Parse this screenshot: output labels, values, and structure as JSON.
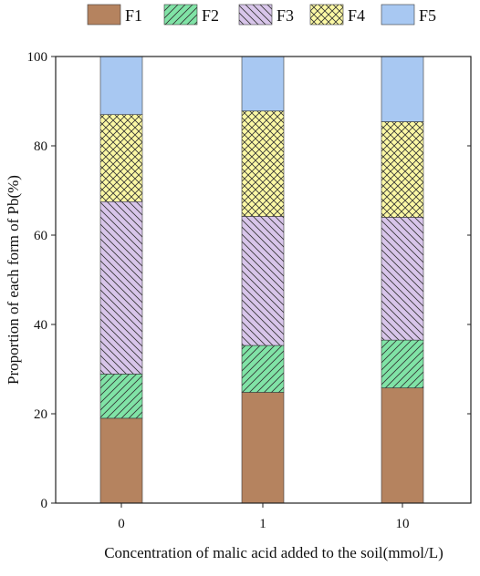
{
  "chart_data": {
    "type": "bar",
    "stacked": true,
    "categories": [
      "0",
      "1",
      "10"
    ],
    "series": [
      {
        "name": "F1",
        "values": [
          19.0,
          24.8,
          25.8
        ],
        "color": "#b5835f",
        "pattern": "solid"
      },
      {
        "name": "F2",
        "values": [
          9.9,
          10.5,
          10.7
        ],
        "color": "#80e3a6",
        "pattern": "diagonal-right"
      },
      {
        "name": "F3",
        "values": [
          38.6,
          28.9,
          27.5
        ],
        "color": "#d8c5ea",
        "pattern": "diagonal-left"
      },
      {
        "name": "F4",
        "values": [
          19.5,
          23.6,
          21.4
        ],
        "color": "#fbf8a4",
        "pattern": "crosshatch"
      },
      {
        "name": "F5",
        "values": [
          13.0,
          12.2,
          14.6
        ],
        "color": "#a8c8f2",
        "pattern": "solid"
      }
    ],
    "xlabel": "Concentration of malic acid added to the soil(mmol/L)",
    "ylabel": "Proportion of each form of Pb(%)",
    "ylim": [
      0,
      100
    ],
    "yticks": [
      0,
      20,
      40,
      60,
      80,
      100
    ],
    "grid": false,
    "legend_position": "top"
  }
}
